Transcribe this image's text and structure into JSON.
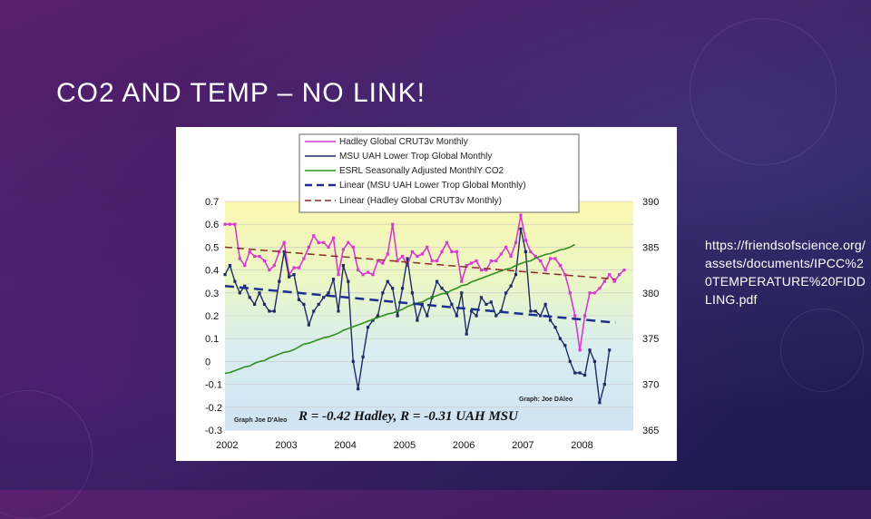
{
  "slide": {
    "title": "CO2 AND TEMP – NO LINK!",
    "source_url": "https://friendsofscience.org/assets/documents/IPCC%20TEMPERATURE%20FIDDLING.pdf"
  },
  "colors": {
    "hadley": "#d63ad0",
    "msu": "#1f2a66",
    "co2": "#2f8f1e",
    "linear_msu": "#1c2f8a",
    "linear_hadley": "#8a2a2a"
  },
  "chart_data": {
    "type": "line",
    "title": "",
    "xlabel": "",
    "ylabel": "",
    "x_ticks": [
      "2002",
      "2003",
      "2004",
      "2005",
      "2006",
      "2007",
      "2008"
    ],
    "x_range": [
      2002,
      2008.9
    ],
    "ylim": [
      -0.3,
      0.7
    ],
    "y2lim": [
      365,
      390
    ],
    "y_ticks": [
      "0.7",
      "0.6",
      "0.5",
      "0.4",
      "0.3",
      "0.2",
      "0.1",
      "0",
      "-0.1",
      "-0.2",
      "-0.3"
    ],
    "y2_ticks": [
      "390",
      "385",
      "380",
      "375",
      "370",
      "365"
    ],
    "legend": [
      "Hadley Global CRUT3v Monthly",
      "MSU UAH Lower Trop Global Monthly",
      "ESRL Seasonally Adjusted MonthlY CO2",
      "Linear (MSU UAH Lower Trop Global Monthly)",
      "Linear (Hadley Global CRUT3v Monthly)"
    ],
    "annotation_main": "R = -0.42 Hadley,  R = -0.31 UAH MSU",
    "annotation_credit_left": "Graph Joe D'Aleo",
    "annotation_credit_right": "Graph: Joe DAleo",
    "series": [
      {
        "name": "Hadley Global CRUT3v Monthly",
        "axis": "left",
        "start": 2002.0,
        "step": 0.0833,
        "values": [
          0.6,
          0.6,
          0.6,
          0.45,
          0.42,
          0.48,
          0.46,
          0.46,
          0.44,
          0.4,
          0.42,
          0.48,
          0.52,
          0.38,
          0.41,
          0.41,
          0.45,
          0.5,
          0.55,
          0.52,
          0.52,
          0.5,
          0.54,
          0.38,
          0.49,
          0.52,
          0.5,
          0.4,
          0.38,
          0.39,
          0.38,
          0.44,
          0.43,
          0.47,
          0.6,
          0.44,
          0.46,
          0.42,
          0.48,
          0.46,
          0.47,
          0.5,
          0.44,
          0.44,
          0.48,
          0.52,
          0.48,
          0.48,
          0.35,
          0.42,
          0.43,
          0.44,
          0.4,
          0.4,
          0.44,
          0.44,
          0.47,
          0.5,
          0.46,
          0.52,
          0.64,
          0.53,
          0.48,
          0.46,
          0.44,
          0.4,
          0.45,
          0.45,
          0.42,
          0.38,
          0.3,
          0.2,
          0.05,
          0.2,
          0.3,
          0.3,
          0.32,
          0.35,
          0.38,
          0.35,
          0.38,
          0.4
        ]
      },
      {
        "name": "MSU UAH Lower Trop Global Monthly",
        "axis": "left",
        "start": 2002.0,
        "step": 0.0833,
        "values": [
          0.38,
          0.42,
          0.35,
          0.3,
          0.33,
          0.28,
          0.25,
          0.3,
          0.25,
          0.22,
          0.22,
          0.35,
          0.48,
          0.37,
          0.38,
          0.27,
          0.25,
          0.16,
          0.22,
          0.25,
          0.28,
          0.3,
          0.36,
          0.22,
          0.42,
          0.35,
          0.0,
          -0.12,
          0.02,
          0.15,
          0.18,
          0.2,
          0.3,
          0.35,
          0.32,
          0.2,
          0.32,
          0.45,
          0.3,
          0.18,
          0.25,
          0.2,
          0.28,
          0.35,
          0.32,
          0.3,
          0.25,
          0.2,
          0.3,
          0.12,
          0.22,
          0.2,
          0.28,
          0.25,
          0.26,
          0.2,
          0.22,
          0.3,
          0.33,
          0.38,
          0.58,
          0.48,
          0.22,
          0.22,
          0.2,
          0.25,
          0.18,
          0.15,
          0.1,
          0.07,
          0.0,
          -0.05,
          -0.05,
          -0.06,
          0.05,
          0.0,
          -0.18,
          -0.1,
          0.05
        ]
      },
      {
        "name": "ESRL Seasonally Adjusted MonthlY CO2",
        "axis": "right",
        "start": 2002.0,
        "step": 0.0833,
        "values": [
          371.2,
          371.3,
          371.5,
          371.7,
          371.9,
          372.0,
          372.3,
          372.5,
          372.6,
          372.9,
          373.1,
          373.3,
          373.5,
          373.6,
          373.8,
          374.1,
          374.4,
          374.5,
          374.7,
          374.9,
          375.1,
          375.2,
          375.4,
          375.6,
          375.9,
          376.1,
          376.3,
          376.5,
          376.7,
          376.9,
          377.1,
          377.3,
          377.5,
          377.7,
          377.8,
          378.0,
          378.2,
          378.5,
          378.7,
          378.9,
          379.0,
          379.3,
          379.5,
          379.7,
          379.9,
          380.0,
          380.3,
          380.5,
          380.8,
          380.9,
          381.2,
          381.4,
          381.6,
          381.8,
          382.0,
          382.2,
          382.4,
          382.6,
          382.7,
          383.0,
          383.2,
          383.4,
          383.5,
          383.8,
          384.0,
          384.2,
          384.3,
          384.5,
          384.7,
          384.8,
          385.0,
          385.3
        ]
      },
      {
        "name": "Linear (MSU UAH Lower Trop Global Monthly)",
        "axis": "left",
        "start": 2002.0,
        "end": 2008.6,
        "values": [
          0.33,
          0.17
        ]
      },
      {
        "name": "Linear (Hadley Global CRUT3v Monthly)",
        "axis": "left",
        "start": 2002.0,
        "end": 2008.6,
        "values": [
          0.5,
          0.36
        ]
      }
    ]
  }
}
